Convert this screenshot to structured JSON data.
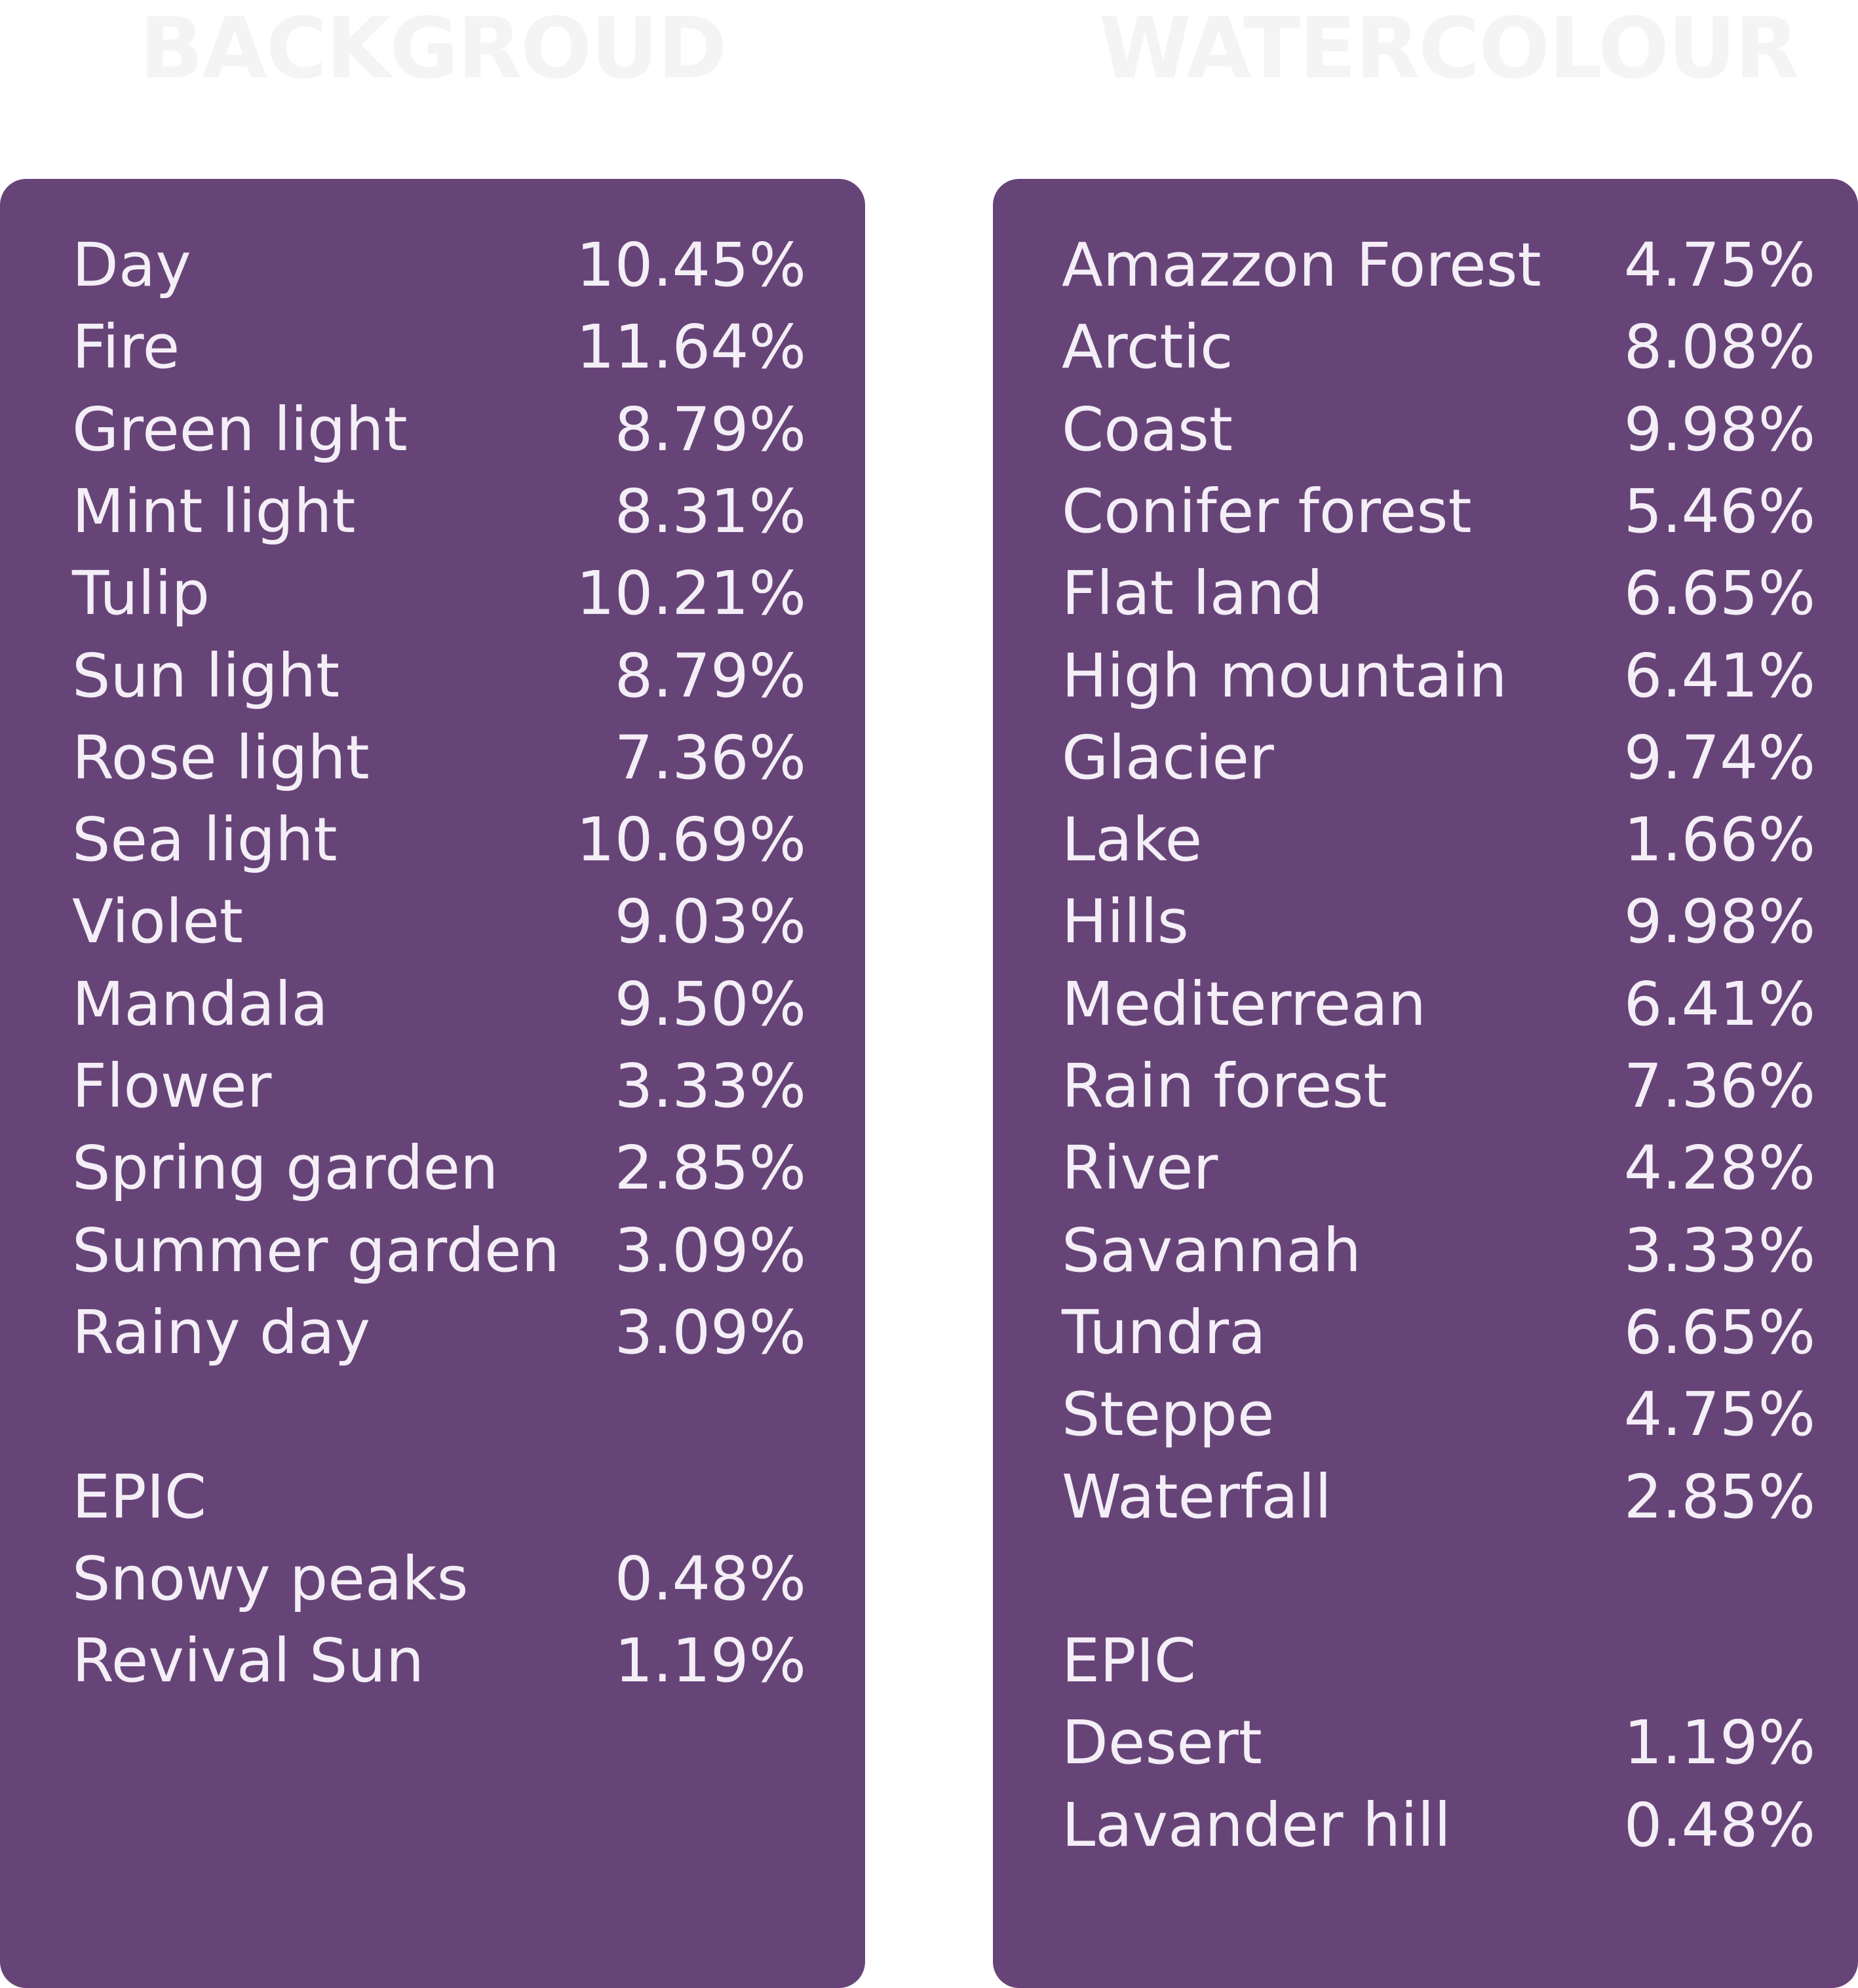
{
  "colors": {
    "panel": "#674478",
    "panel_text": "#f4eef7",
    "heading_text": "#f4f4f5"
  },
  "background": {
    "title": "BACKGROUD",
    "items": [
      {
        "name": "Day",
        "pct": "10.45%"
      },
      {
        "name": "Fire",
        "pct": "11.64%"
      },
      {
        "name": "Green light",
        "pct": "8.79%"
      },
      {
        "name": "Mint light",
        "pct": "8.31%"
      },
      {
        "name": "Tulip",
        "pct": "10.21%"
      },
      {
        "name": "Sun light",
        "pct": "8.79%"
      },
      {
        "name": "Rose light",
        "pct": "7.36%"
      },
      {
        "name": "Sea light",
        "pct": "10.69%"
      },
      {
        "name": "Violet",
        "pct": "9.03%"
      },
      {
        "name": "Mandala",
        "pct": "9.50%"
      },
      {
        "name": "Flower",
        "pct": "3.33%"
      },
      {
        "name": "Spring garden",
        "pct": "2.85%"
      },
      {
        "name": "Summer garden",
        "pct": "3.09%"
      },
      {
        "name": "Rainy day",
        "pct": "3.09%"
      }
    ],
    "epic_label": "EPIC",
    "epic_items": [
      {
        "name": "Snowy peaks",
        "pct": "0.48%"
      },
      {
        "name": "Revival Sun",
        "pct": "1.19%"
      }
    ]
  },
  "watercolour": {
    "title": "WATERCOLOUR",
    "items": [
      {
        "name": "Amazzon Forest",
        "pct": "4.75%"
      },
      {
        "name": "Arctic",
        "pct": "8.08%"
      },
      {
        "name": "Coast",
        "pct": "9.98%"
      },
      {
        "name": "Conifer forest",
        "pct": "5.46%"
      },
      {
        "name": "Flat land",
        "pct": "6.65%"
      },
      {
        "name": "High mountain",
        "pct": "6.41%"
      },
      {
        "name": "Glacier",
        "pct": "9.74%"
      },
      {
        "name": "Lake",
        "pct": "1.66%"
      },
      {
        "name": "Hills",
        "pct": "9.98%"
      },
      {
        "name": "Mediterrean",
        "pct": "6.41%"
      },
      {
        "name": "Rain forest",
        "pct": "7.36%"
      },
      {
        "name": "River",
        "pct": "4.28%"
      },
      {
        "name": "Savannah",
        "pct": "3.33%"
      },
      {
        "name": "Tundra",
        "pct": "6.65%"
      },
      {
        "name": "Steppe",
        "pct": "4.75%"
      },
      {
        "name": "Waterfall",
        "pct": "2.85%"
      }
    ],
    "epic_label": "EPIC",
    "epic_items": [
      {
        "name": "Desert",
        "pct": "1.19%"
      },
      {
        "name": "Lavander hill",
        "pct": "0.48%"
      }
    ]
  }
}
